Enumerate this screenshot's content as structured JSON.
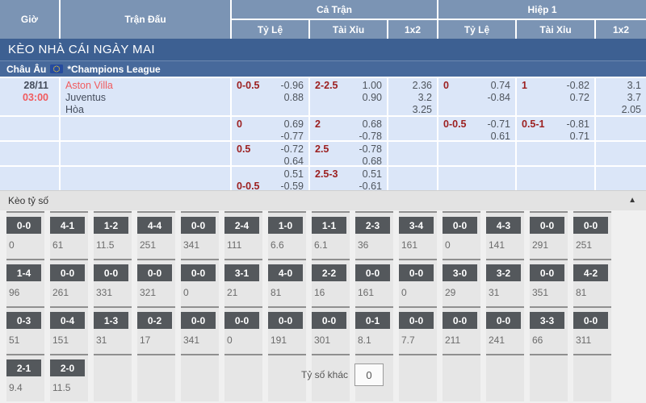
{
  "colors": {
    "header_blue": "#7b94b4",
    "banner_blue": "#3d6092",
    "league_blue": "#47699b",
    "cell_blue": "#dbe6f8",
    "handicap_red": "#9c2020",
    "team_red": "#f15b5e",
    "chip_gray": "#54585c",
    "flag_blue": "#264b9e",
    "flag_star": "#f8d12e"
  },
  "header": {
    "col_time": "Giờ",
    "col_match": "Trận Đấu",
    "group_full": "Cả Trận",
    "group_half": "Hiệp 1",
    "sub": [
      "Tỷ Lệ",
      "Tài Xỉu",
      "1x2"
    ]
  },
  "banner": {
    "title": "KÈO NHÀ CÁI NGÀY MAI"
  },
  "league_bar": {
    "region": "Châu Âu",
    "league": "*Champions League"
  },
  "match": {
    "date": "28/11",
    "time": "03:00",
    "teams": [
      {
        "name": "Aston Villa",
        "highlight": true
      },
      {
        "name": "Juventus",
        "highlight": false
      },
      {
        "name": "Hòa",
        "highlight": false
      }
    ]
  },
  "odds_rows": [
    {
      "ft_hdp": {
        "lines": [
          {
            "h": "0-0.5",
            "v": "-0.96"
          },
          {
            "h": "",
            "v": "0.88"
          }
        ]
      },
      "ft_ou": {
        "lines": [
          {
            "h": "2-2.5",
            "v": "1.00"
          },
          {
            "h": "",
            "v": "0.90"
          }
        ]
      },
      "ft_1x2": {
        "lines": [
          {
            "h": "",
            "v": "2.36"
          },
          {
            "h": "",
            "v": "3.2"
          },
          {
            "h": "",
            "v": "3.25"
          }
        ]
      },
      "h1_hdp": {
        "lines": [
          {
            "h": "0",
            "v": "0.74"
          },
          {
            "h": "",
            "v": "-0.84"
          }
        ]
      },
      "h1_ou": {
        "lines": [
          {
            "h": "1",
            "v": "-0.82"
          },
          {
            "h": "",
            "v": "0.72"
          }
        ]
      },
      "h1_1x2": {
        "lines": [
          {
            "h": "",
            "v": "3.1"
          },
          {
            "h": "",
            "v": "3.7"
          },
          {
            "h": "",
            "v": "2.05"
          }
        ]
      }
    },
    {
      "ft_hdp": {
        "lines": [
          {
            "h": "0",
            "v": "0.69"
          },
          {
            "h": "",
            "v": "-0.77"
          }
        ]
      },
      "ft_ou": {
        "lines": [
          {
            "h": "2",
            "v": "0.68"
          },
          {
            "h": "",
            "v": "-0.78"
          }
        ]
      },
      "ft_1x2": null,
      "h1_hdp": {
        "lines": [
          {
            "h": "0-0.5",
            "v": "-0.71"
          },
          {
            "h": "",
            "v": "0.61"
          }
        ]
      },
      "h1_ou": {
        "lines": [
          {
            "h": "0.5-1",
            "v": "-0.81"
          },
          {
            "h": "",
            "v": "0.71"
          }
        ]
      },
      "h1_1x2": null
    },
    {
      "ft_hdp": {
        "lines": [
          {
            "h": "0.5",
            "v": "-0.72"
          },
          {
            "h": "",
            "v": "0.64"
          }
        ]
      },
      "ft_ou": {
        "lines": [
          {
            "h": "2.5",
            "v": "-0.78"
          },
          {
            "h": "",
            "v": "0.68"
          }
        ]
      },
      "ft_1x2": null,
      "h1_hdp": null,
      "h1_ou": null,
      "h1_1x2": null
    },
    {
      "ft_hdp": {
        "lines": [
          {
            "h": "",
            "v": "0.51"
          },
          {
            "h": "0-0.5",
            "v": "-0.59"
          }
        ]
      },
      "ft_ou": {
        "lines": [
          {
            "h": "2.5-3",
            "v": "0.51"
          },
          {
            "h": "",
            "v": "-0.61"
          }
        ]
      },
      "ft_1x2": null,
      "h1_hdp": null,
      "h1_ou": null,
      "h1_1x2": null
    }
  ],
  "score_section": {
    "title": "Kèo tỷ số",
    "collapse_icon": "▲",
    "other_label": "Tỷ số khác",
    "other_value": "0",
    "rows": [
      [
        {
          "s": "0-0",
          "odd": "0"
        },
        {
          "s": "4-1",
          "odd": "61"
        },
        {
          "s": "1-2",
          "odd": "11.5"
        },
        {
          "s": "4-4",
          "odd": "251"
        },
        {
          "s": "0-0",
          "odd": "341"
        },
        {
          "s": "2-4",
          "odd": "111"
        },
        {
          "s": "1-0",
          "odd": "6.6"
        },
        {
          "s": "1-1",
          "odd": "6.1"
        },
        {
          "s": "2-3",
          "odd": "36"
        },
        {
          "s": "3-4",
          "odd": "161"
        },
        {
          "s": "0-0",
          "odd": "0"
        },
        {
          "s": "4-3",
          "odd": "141"
        },
        {
          "s": "0-0",
          "odd": "291"
        },
        {
          "s": "0-0",
          "odd": "251"
        }
      ],
      [
        {
          "s": "1-4",
          "odd": "96"
        },
        {
          "s": "0-0",
          "odd": "261"
        },
        {
          "s": "0-0",
          "odd": "331"
        },
        {
          "s": "0-0",
          "odd": "321"
        },
        {
          "s": "0-0",
          "odd": "0"
        },
        {
          "s": "3-1",
          "odd": "21"
        },
        {
          "s": "4-0",
          "odd": "81"
        },
        {
          "s": "2-2",
          "odd": "16"
        },
        {
          "s": "0-0",
          "odd": "161"
        },
        {
          "s": "0-0",
          "odd": "0"
        },
        {
          "s": "3-0",
          "odd": "29"
        },
        {
          "s": "3-2",
          "odd": "31"
        },
        {
          "s": "0-0",
          "odd": "351"
        },
        {
          "s": "4-2",
          "odd": "81"
        }
      ],
      [
        {
          "s": "0-3",
          "odd": "51"
        },
        {
          "s": "0-4",
          "odd": "151"
        },
        {
          "s": "1-3",
          "odd": "31"
        },
        {
          "s": "0-2",
          "odd": "17"
        },
        {
          "s": "0-0",
          "odd": "341"
        },
        {
          "s": "0-0",
          "odd": "0"
        },
        {
          "s": "0-0",
          "odd": "191"
        },
        {
          "s": "0-0",
          "odd": "301"
        },
        {
          "s": "0-1",
          "odd": "8.1"
        },
        {
          "s": "0-0",
          "odd": "7.7"
        },
        {
          "s": "0-0",
          "odd": "211"
        },
        {
          "s": "0-0",
          "odd": "241"
        },
        {
          "s": "3-3",
          "odd": "66"
        },
        {
          "s": "0-0",
          "odd": "311"
        }
      ],
      [
        {
          "s": "2-1",
          "odd": "9.4"
        },
        {
          "s": "2-0",
          "odd": "11.5"
        },
        {},
        {},
        {},
        {},
        {},
        {},
        {},
        {},
        {},
        {},
        {},
        {}
      ]
    ]
  }
}
